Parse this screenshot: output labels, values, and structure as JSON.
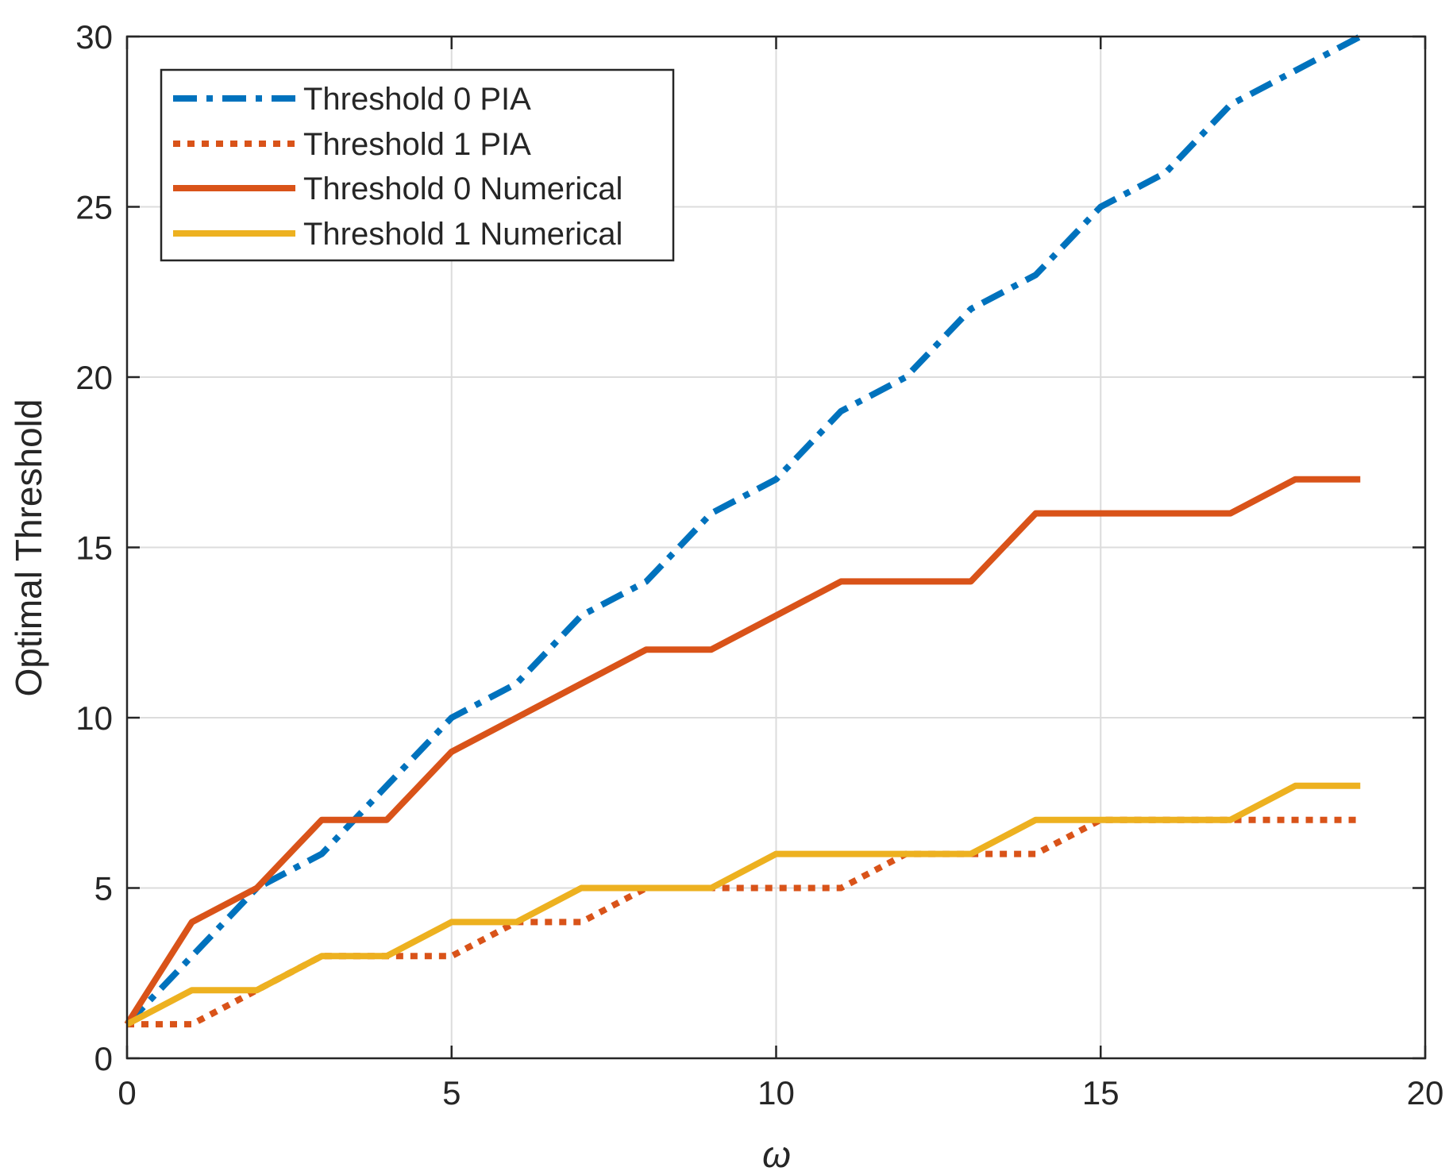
{
  "chart_data": {
    "type": "line",
    "title": "",
    "xlabel": "ω",
    "ylabel": "Optimal Threshold",
    "xlim": [
      0,
      20
    ],
    "ylim": [
      0,
      30
    ],
    "xticks": [
      0,
      5,
      10,
      15,
      20
    ],
    "yticks": [
      0,
      5,
      10,
      15,
      20,
      25,
      30
    ],
    "grid": true,
    "legend_position": "top-left",
    "x": [
      0,
      1,
      2,
      3,
      4,
      5,
      6,
      7,
      8,
      9,
      10,
      11,
      12,
      13,
      14,
      15,
      16,
      17,
      18,
      19
    ],
    "series": [
      {
        "name": "Threshold 0 PIA",
        "color": "#0072BD",
        "style": "dashdot",
        "values": [
          1,
          3,
          5,
          6,
          8,
          10,
          11,
          13,
          14,
          16,
          17,
          19,
          20,
          22,
          23,
          25,
          26,
          28,
          29,
          30
        ]
      },
      {
        "name": "Threshold 1 PIA",
        "color": "#D95319",
        "style": "dotted",
        "values": [
          1,
          1,
          2,
          3,
          3,
          3,
          4,
          4,
          5,
          5,
          5,
          5,
          6,
          6,
          6,
          7,
          7,
          7,
          7,
          7
        ]
      },
      {
        "name": "Threshold 0 Numerical",
        "color": "#D95319",
        "style": "solid",
        "values": [
          1,
          4,
          5,
          7,
          7,
          9,
          10,
          11,
          12,
          12,
          13,
          14,
          14,
          14,
          16,
          16,
          16,
          16,
          17,
          17
        ]
      },
      {
        "name": "Threshold 1 Numerical",
        "color": "#EDB120",
        "style": "solid",
        "values": [
          1,
          2,
          2,
          3,
          3,
          4,
          4,
          5,
          5,
          5,
          6,
          6,
          6,
          6,
          7,
          7,
          7,
          7,
          8,
          8
        ]
      }
    ]
  }
}
